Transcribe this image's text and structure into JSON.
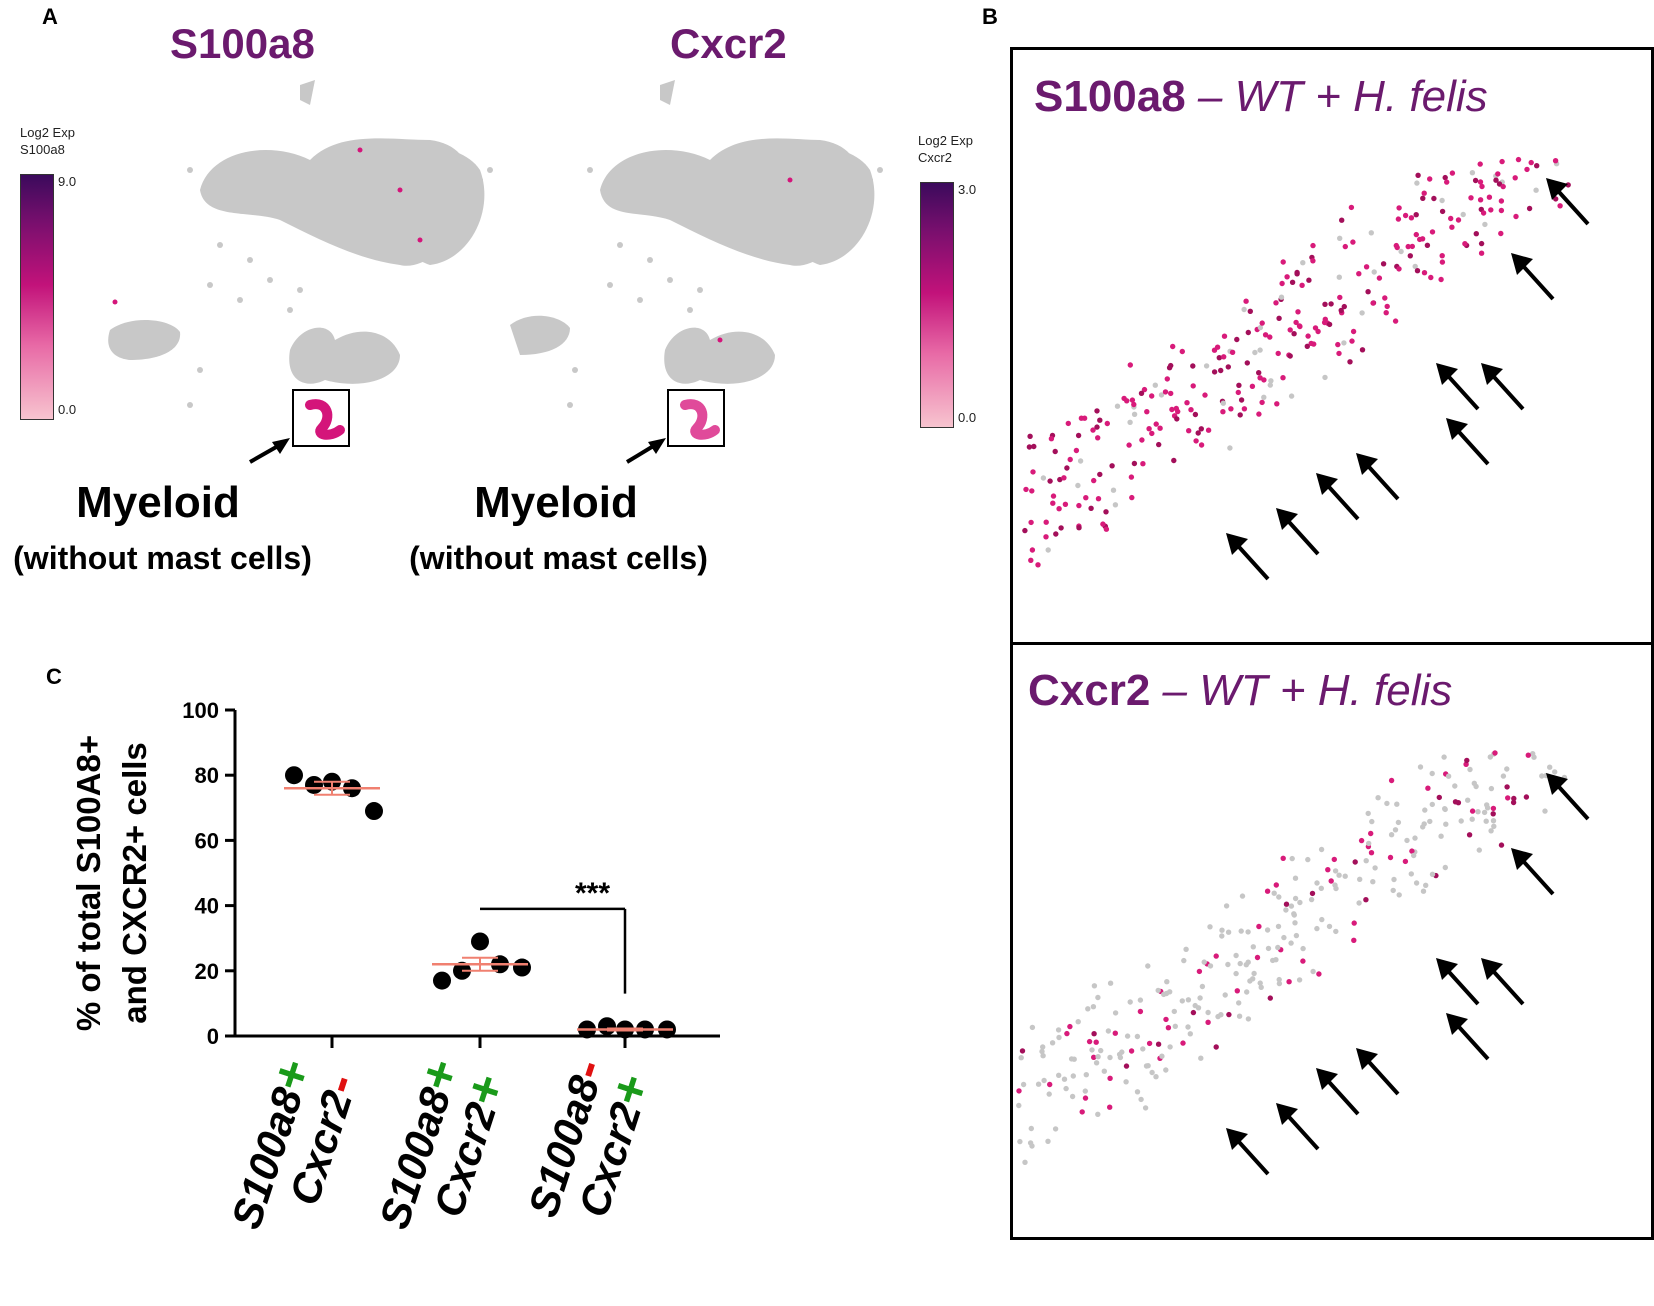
{
  "panel_a": {
    "letter": "A",
    "umaps": [
      {
        "title": "S100a8",
        "legend_title_line1": "Log2 Exp",
        "legend_title_line2": "S100a8",
        "legend_max": "9.0",
        "legend_min": "0.0",
        "myeloid_label": "Myeloid",
        "myeloid_sub": "(without mast cells)"
      },
      {
        "title": "Cxcr2",
        "legend_title_line1": "Log2 Exp",
        "legend_title_line2": "Cxcr2",
        "legend_max": "3.0",
        "legend_min": "0.0",
        "myeloid_label": "Myeloid",
        "myeloid_sub": "(without mast cells)"
      }
    ]
  },
  "panel_b": {
    "letter": "B",
    "images": [
      {
        "gene": "S100a8",
        "condition": " – WT + H. felis"
      },
      {
        "gene": "Cxcr2",
        "condition": " – WT + H. felis"
      }
    ]
  },
  "panel_c": {
    "letter": "C"
  },
  "colors": {
    "purple_title": "#6b1a6e",
    "pink": "#d4157a",
    "grey": "#c8c8c8",
    "mean_line": "#f08070",
    "plus": "#1a9a1a",
    "minus": "#e01010"
  },
  "chart_data": {
    "type": "scatter",
    "ylabel_line1": "% of total S100A8+",
    "ylabel_line2": "and CXCR2+ cells",
    "ylim": [
      0,
      100
    ],
    "yticks": [
      "0",
      "20",
      "40",
      "60",
      "80",
      "100"
    ],
    "categories": [
      {
        "gene1": "S100a8",
        "sign1": "+",
        "gene2": "Cxcr2",
        "sign2": "-"
      },
      {
        "gene1": "S100a8",
        "sign1": "+",
        "gene2": "Cxcr2",
        "sign2": "+"
      },
      {
        "gene1": "S100a8",
        "sign1": "-",
        "gene2": "Cxcr2",
        "sign2": "+"
      }
    ],
    "points": [
      [
        80,
        77,
        78,
        76,
        69
      ],
      [
        17,
        20,
        29,
        22,
        21
      ],
      [
        2,
        3,
        2,
        2,
        2
      ]
    ],
    "means": [
      76,
      22,
      2
    ],
    "sem": [
      2,
      2,
      0.3
    ],
    "significance": {
      "from": 1,
      "to": 2,
      "label": "***"
    }
  }
}
